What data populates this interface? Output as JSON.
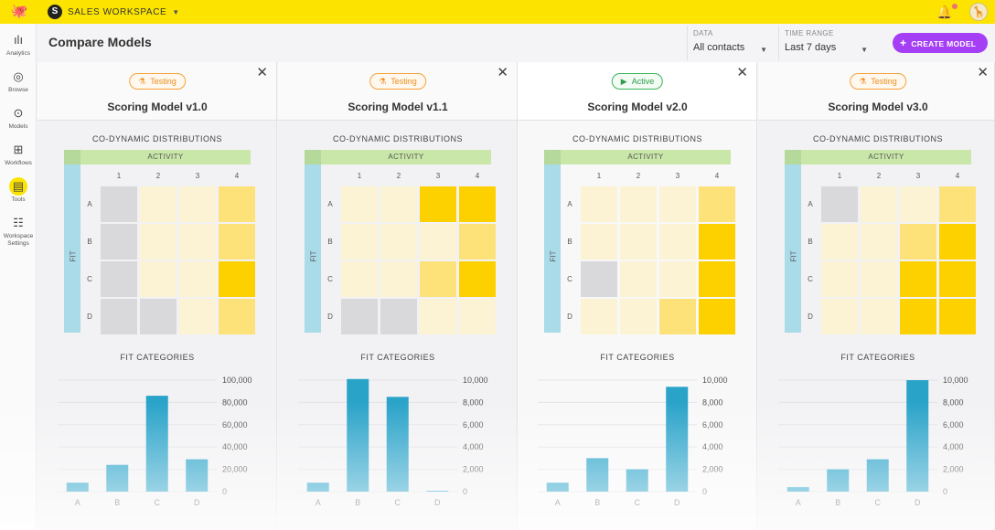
{
  "app": {
    "workspace_name": "SALES WORKSPACE",
    "workspace_logo": "S",
    "icons": {
      "logo": "octopus-logo-icon",
      "bell": "bell-icon",
      "avatar": "user-avatar"
    },
    "notification_dot_color": "#f07070"
  },
  "sidebar": {
    "items": [
      {
        "label": "Analytics",
        "icon": "bar-chart-icon",
        "glyph": "📊"
      },
      {
        "label": "Browse",
        "icon": "compass-icon",
        "glyph": "⊘"
      },
      {
        "label": "Models",
        "icon": "model-icon",
        "glyph": "⊚"
      },
      {
        "label": "Workflows",
        "icon": "workflow-icon",
        "glyph": "⧉"
      },
      {
        "label": "Tools",
        "icon": "toolbox-icon",
        "glyph": "▣",
        "active": true
      },
      {
        "label": "Workspace Settings",
        "icon": "sliders-icon",
        "glyph": "☰"
      }
    ]
  },
  "header": {
    "title": "Compare Models",
    "data_filter": {
      "label": "DATA",
      "value": "All contacts"
    },
    "time_filter": {
      "label": "TIME RANGE",
      "value": "Last 7 days"
    },
    "create_button": "CREATE MODEL",
    "accent_color": "#a53ff5"
  },
  "labels": {
    "distributions": "CO-DYNAMIC DISTRIBUTIONS",
    "activity": "ACTIVITY",
    "fit": "FIT",
    "fit_categories": "FIT CATEGORIES",
    "columns": [
      "1",
      "2",
      "3",
      "4"
    ],
    "rows": [
      "A",
      "B",
      "C",
      "D"
    ]
  },
  "models": [
    {
      "name": "Scoring Model v1.0",
      "status": "Testing",
      "heatmap": [
        [
          "g",
          "l",
          "l",
          "m"
        ],
        [
          "g",
          "l",
          "l",
          "m"
        ],
        [
          "g",
          "l",
          "l",
          "h"
        ],
        [
          "g",
          "g",
          "l",
          "m"
        ]
      ],
      "chart_data": {
        "type": "bar",
        "title": "FIT CATEGORIES",
        "categories": [
          "A",
          "B",
          "C",
          "D"
        ],
        "values": [
          8000,
          24000,
          86000,
          29000
        ],
        "ylim": [
          0,
          100000
        ],
        "yticks": [
          "100,000",
          "80,000",
          "60,000",
          "40,000",
          "20,000",
          "0"
        ]
      }
    },
    {
      "name": "Scoring Model v1.1",
      "status": "Testing",
      "heatmap": [
        [
          "l",
          "l",
          "h",
          "h"
        ],
        [
          "l",
          "l",
          "l",
          "m"
        ],
        [
          "l",
          "l",
          "m",
          "h"
        ],
        [
          "g",
          "g",
          "l",
          "l"
        ]
      ],
      "chart_data": {
        "type": "bar",
        "title": "FIT CATEGORIES",
        "categories": [
          "A",
          "B",
          "C",
          "D"
        ],
        "values": [
          800,
          10100,
          8500,
          50
        ],
        "ylim": [
          0,
          10000
        ],
        "yticks": [
          "10,000",
          "8,000",
          "6,000",
          "4,000",
          "2,000",
          "0"
        ]
      }
    },
    {
      "name": "Scoring Model v2.0",
      "status": "Active",
      "heatmap": [
        [
          "l",
          "l",
          "l",
          "m"
        ],
        [
          "l",
          "l",
          "l",
          "h"
        ],
        [
          "g",
          "l",
          "l",
          "h"
        ],
        [
          "l",
          "l",
          "m",
          "h"
        ]
      ],
      "chart_data": {
        "type": "bar",
        "title": "FIT CATEGORIES",
        "categories": [
          "A",
          "B",
          "C",
          "D"
        ],
        "values": [
          800,
          3000,
          2000,
          9400
        ],
        "ylim": [
          0,
          10000
        ],
        "yticks": [
          "10,000",
          "8,000",
          "6,000",
          "4,000",
          "2,000",
          "0"
        ]
      }
    },
    {
      "name": "Scoring Model v3.0",
      "status": "Testing",
      "heatmap": [
        [
          "g",
          "l",
          "l",
          "m"
        ],
        [
          "l",
          "l",
          "m",
          "h"
        ],
        [
          "l",
          "l",
          "h",
          "h"
        ],
        [
          "l",
          "l",
          "h",
          "h"
        ]
      ],
      "chart_data": {
        "type": "bar",
        "title": "FIT CATEGORIES",
        "categories": [
          "A",
          "B",
          "C",
          "D"
        ],
        "values": [
          400,
          2000,
          2900,
          10000
        ],
        "ylim": [
          0,
          10000
        ],
        "yticks": [
          "10,000",
          "8,000",
          "6,000",
          "4,000",
          "2,000",
          "0"
        ]
      }
    }
  ],
  "colors": {
    "topbar": "#fce400",
    "bar": "#2aa3c9",
    "heat_gray": "#d9d9dc",
    "heat_low": "#fbf3d4",
    "heat_mid": "#fde27a",
    "heat_high": "#fdd000",
    "testing": "#f5a23a",
    "active": "#3cb45a"
  }
}
